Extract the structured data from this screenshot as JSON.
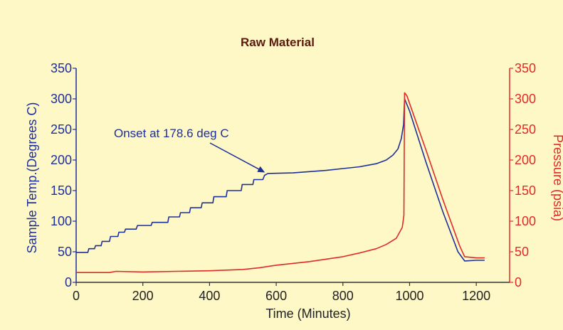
{
  "chart_data": {
    "type": "line",
    "title": "Raw Material",
    "xlabel": "Time (Minutes)",
    "ylabel_left": "Sample Temp.(Degrees C)",
    "ylabel_right": "Pressure (psia)",
    "xlim": [
      0,
      1300
    ],
    "ylim_left": [
      0,
      350
    ],
    "ylim_right": [
      0,
      350
    ],
    "x_ticks": [
      0,
      200,
      400,
      600,
      800,
      1000,
      1200
    ],
    "y_ticks_left": [
      0,
      50,
      100,
      150,
      200,
      250,
      300,
      350
    ],
    "y_ticks_right": [
      0,
      50,
      100,
      150,
      200,
      250,
      300,
      350
    ],
    "grid": false,
    "legend": "none",
    "colors": {
      "temperature": "#1f2f9a",
      "pressure": "#e02a2a",
      "title": "#5a1a0e",
      "background": "#fdf8c6"
    },
    "annotation": {
      "text": "Onset at 178.6 deg C",
      "x": 570,
      "y": 178.6
    },
    "series": [
      {
        "key": "temperature",
        "axis": "left",
        "points": [
          [
            0,
            49
          ],
          [
            35,
            49
          ],
          [
            38,
            55
          ],
          [
            55,
            55
          ],
          [
            58,
            60
          ],
          [
            75,
            60
          ],
          [
            78,
            67
          ],
          [
            100,
            67
          ],
          [
            103,
            75
          ],
          [
            125,
            75
          ],
          [
            128,
            82
          ],
          [
            145,
            82
          ],
          [
            148,
            87
          ],
          [
            180,
            87
          ],
          [
            184,
            93
          ],
          [
            225,
            93
          ],
          [
            228,
            98
          ],
          [
            275,
            98
          ],
          [
            278,
            107
          ],
          [
            310,
            107
          ],
          [
            313,
            114
          ],
          [
            340,
            114
          ],
          [
            343,
            122
          ],
          [
            375,
            122
          ],
          [
            378,
            130
          ],
          [
            410,
            130
          ],
          [
            413,
            140
          ],
          [
            450,
            140
          ],
          [
            453,
            150
          ],
          [
            495,
            150
          ],
          [
            498,
            160
          ],
          [
            530,
            160
          ],
          [
            533,
            168
          ],
          [
            560,
            168
          ],
          [
            565,
            175
          ],
          [
            575,
            178
          ],
          [
            650,
            179
          ],
          [
            700,
            181
          ],
          [
            750,
            183
          ],
          [
            800,
            186
          ],
          [
            850,
            189
          ],
          [
            900,
            194
          ],
          [
            930,
            200
          ],
          [
            950,
            208
          ],
          [
            965,
            218
          ],
          [
            975,
            235
          ],
          [
            982,
            258
          ],
          [
            985,
            300
          ],
          [
            1000,
            280
          ],
          [
            1050,
            195
          ],
          [
            1100,
            115
          ],
          [
            1145,
            50
          ],
          [
            1165,
            35
          ],
          [
            1200,
            36
          ],
          [
            1225,
            36
          ]
        ]
      },
      {
        "key": "pressure",
        "axis": "right",
        "points": [
          [
            0,
            16
          ],
          [
            100,
            16
          ],
          [
            120,
            18
          ],
          [
            200,
            17
          ],
          [
            300,
            18
          ],
          [
            400,
            19
          ],
          [
            450,
            20
          ],
          [
            500,
            21
          ],
          [
            550,
            24
          ],
          [
            600,
            28
          ],
          [
            700,
            34
          ],
          [
            800,
            42
          ],
          [
            850,
            48
          ],
          [
            900,
            55
          ],
          [
            930,
            62
          ],
          [
            960,
            72
          ],
          [
            978,
            90
          ],
          [
            983,
            110
          ],
          [
            985,
            310
          ],
          [
            992,
            305
          ],
          [
            1050,
            215
          ],
          [
            1100,
            135
          ],
          [
            1150,
            60
          ],
          [
            1165,
            42
          ],
          [
            1200,
            40
          ],
          [
            1225,
            40
          ]
        ]
      }
    ]
  }
}
